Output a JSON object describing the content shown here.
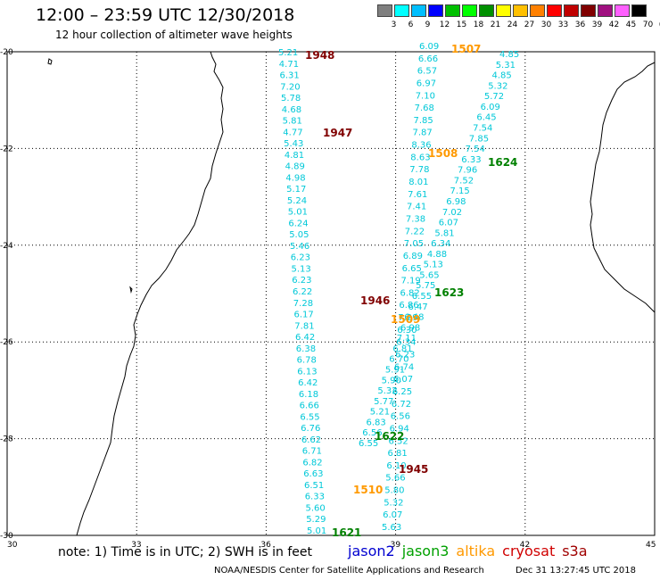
{
  "title": "12:00 – 23:59 UTC 12/30/2018",
  "subtitle": "12 hour collection of altimeter wave heights",
  "color_scale": {
    "labels": [
      "3",
      "6",
      "9",
      "12",
      "15",
      "18",
      "21",
      "24",
      "27",
      "30",
      "33",
      "36",
      "39",
      "42",
      "45",
      "70",
      "(ft)"
    ],
    "colors": [
      "#7f7f7f",
      "#00ffff",
      "#00bfff",
      "#0000ff",
      "#00c000",
      "#00ff00",
      "#009000",
      "#ffff00",
      "#ffc000",
      "#ff8000",
      "#ff0000",
      "#c00000",
      "#800000",
      "#a01080",
      "#ff60ff",
      "#000000"
    ]
  },
  "axes": {
    "lon_ticks": [
      "30",
      "33",
      "36",
      "39",
      "42",
      "45"
    ],
    "lat_ticks": [
      "-20",
      "-22",
      "-24",
      "-26",
      "-28",
      "-30"
    ]
  },
  "note": "note: 1) Time is in UTC; 2) SWH is in feet",
  "satellites": [
    {
      "name": "jason2",
      "color": "#0000d0"
    },
    {
      "name": "jason3",
      "color": "#00a000"
    },
    {
      "name": "altika",
      "color": "#ff9900"
    },
    {
      "name": "cryosat",
      "color": "#d00000"
    },
    {
      "name": "s3a",
      "color": "#a00000"
    }
  ],
  "footer": {
    "center": "NOAA/NESDIS Center for Satellite Applications and Research",
    "timestamp": "Dec 31 13:27:45 UTC 2018"
  },
  "pass_labels": [
    {
      "text": "1948",
      "color": "#800000"
    },
    {
      "text": "1947",
      "color": "#800000"
    },
    {
      "text": "1946",
      "color": "#800000"
    },
    {
      "text": "1945",
      "color": "#800000"
    },
    {
      "text": "1507",
      "color": "#ff9900"
    },
    {
      "text": "1508",
      "color": "#ff9900"
    },
    {
      "text": "1509",
      "color": "#ff9900"
    },
    {
      "text": "1510",
      "color": "#ff9900"
    },
    {
      "text": "1624",
      "color": "#008000"
    },
    {
      "text": "1623",
      "color": "#008000"
    },
    {
      "text": "1622",
      "color": "#008000"
    },
    {
      "text": "1621",
      "color": "#008000"
    }
  ],
  "tracks": [
    {
      "name": "track-1948-1946",
      "color": "#00c8d8",
      "values": [
        "5.21",
        "4.71",
        "6.31",
        "7.20",
        "5.78",
        "4.68",
        "5.81",
        "4.77",
        "5.43",
        "4.81",
        "4.89",
        "4.98",
        "5.17",
        "5.24",
        "5.01",
        "6.24",
        "5.05",
        "5.46",
        "6.23",
        "5.13",
        "6.23",
        "6.22",
        "7.28",
        "6.17",
        "7.81",
        "6.42",
        "6.38",
        "6.78",
        "6.13",
        "6.42",
        "6.18",
        "6.66",
        "6.55",
        "6.76",
        "6.62",
        "6.71",
        "6.82",
        "6.63",
        "6.51",
        "6.33",
        "5.60",
        "5.29",
        "5.01"
      ]
    },
    {
      "name": "track-1507-1510",
      "color": "#00c8d8",
      "values": [
        "6.09",
        "6.66",
        "6.57",
        "6.97",
        "7.10",
        "7.68",
        "7.85",
        "7.87",
        "8.36",
        "8.63",
        "7.78",
        "8.01",
        "7.61",
        "7.41",
        "7.38",
        "7.22",
        "7.05",
        "6.89",
        "6.65",
        "7.19",
        "6.82",
        "6.86",
        "7.29",
        "6.30",
        "6.34",
        "6.23",
        "6.74",
        "6.07",
        "6.25",
        "6.72",
        "6.56",
        "6.94",
        "6.52",
        "6.81",
        "6.10",
        "5.66",
        "5.80",
        "5.32",
        "6.07",
        "5.63"
      ]
    },
    {
      "name": "track-1624-1622",
      "color": "#00c8d8",
      "values": [
        "4.85",
        "5.31",
        "4.85",
        "5.32",
        "5.72",
        "6.09",
        "6.45",
        "7.54",
        "7.85",
        "7.54",
        "6.33",
        "7.96",
        "7.52",
        "7.15",
        "6.98",
        "7.02",
        "6.07",
        "5.81",
        "6.34",
        "4.88",
        "5.13",
        "5.65",
        "5.75",
        "6.55",
        "6.47",
        "6.48",
        "6.98",
        "7.11",
        "6.81",
        "6.70",
        "5.91",
        "5.90",
        "5.32",
        "5.77",
        "5.21",
        "6.83",
        "6.56",
        "6.55"
      ]
    }
  ]
}
